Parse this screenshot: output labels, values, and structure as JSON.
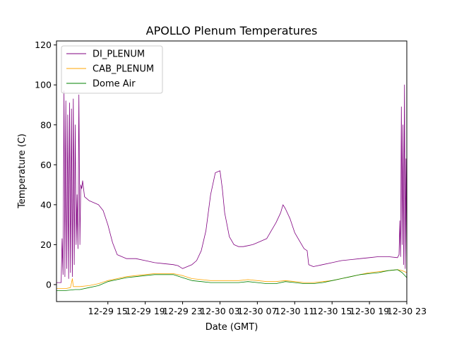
{
  "chart_data": {
    "type": "line",
    "title": "APOLLO Plenum Temperatures",
    "xlabel": "Date (GMT)",
    "ylabel": "Temperature (C)",
    "xlim": [
      "2013-12-29 09:30",
      "2013-12-30 23:00"
    ],
    "ylim": [
      -8.5,
      122
    ],
    "grid": false,
    "legend_position": "top-left",
    "x_ticks": [
      {
        "x": "2013-12-29 15:00",
        "label": "12-29 15"
      },
      {
        "x": "2013-12-29 19:00",
        "label": "12-29 19"
      },
      {
        "x": "2013-12-29 23:00",
        "label": "12-29 23"
      },
      {
        "x": "2013-12-30 03:00",
        "label": "12-30 03"
      },
      {
        "x": "2013-12-30 07:00",
        "label": "12-30 07"
      },
      {
        "x": "2013-12-30 11:00",
        "label": "12-30 11"
      },
      {
        "x": "2013-12-30 15:00",
        "label": "12-30 15"
      },
      {
        "x": "2013-12-30 19:00",
        "label": "12-30 19"
      },
      {
        "x": "2013-12-30 23:00",
        "label": "12-30 23"
      }
    ],
    "y_ticks": [
      0,
      20,
      40,
      60,
      80,
      100,
      120
    ],
    "series": [
      {
        "name": "DI_PLENUM",
        "color": "#800080",
        "x": [
          "2013-12-29 09:30",
          "2013-12-29 10:00",
          "2013-12-29 10:06",
          "2013-12-29 10:12",
          "2013-12-29 10:18",
          "2013-12-29 10:24",
          "2013-12-29 10:30",
          "2013-12-29 10:36",
          "2013-12-29 10:42",
          "2013-12-29 10:48",
          "2013-12-29 10:54",
          "2013-12-29 11:00",
          "2013-12-29 11:06",
          "2013-12-29 11:12",
          "2013-12-29 11:18",
          "2013-12-29 11:24",
          "2013-12-29 11:30",
          "2013-12-29 11:36",
          "2013-12-29 11:42",
          "2013-12-29 11:48",
          "2013-12-29 11:54",
          "2013-12-29 12:00",
          "2013-12-29 12:06",
          "2013-12-29 12:12",
          "2013-12-29 12:18",
          "2013-12-29 12:30",
          "2013-12-29 13:00",
          "2013-12-29 13:30",
          "2013-12-29 14:00",
          "2013-12-29 14:30",
          "2013-12-29 15:00",
          "2013-12-29 15:30",
          "2013-12-29 16:00",
          "2013-12-29 17:00",
          "2013-12-29 18:00",
          "2013-12-29 19:00",
          "2013-12-29 20:00",
          "2013-12-29 21:00",
          "2013-12-29 22:00",
          "2013-12-29 22:30",
          "2013-12-29 23:00",
          "2013-12-29 23:30",
          "2013-12-30 00:00",
          "2013-12-30 00:30",
          "2013-12-30 01:00",
          "2013-12-30 01:30",
          "2013-12-30 02:00",
          "2013-12-30 02:30",
          "2013-12-30 03:00",
          "2013-12-30 03:15",
          "2013-12-30 03:30",
          "2013-12-30 03:45",
          "2013-12-30 04:00",
          "2013-12-30 04:30",
          "2013-12-30 05:00",
          "2013-12-30 05:30",
          "2013-12-30 06:00",
          "2013-12-30 06:30",
          "2013-12-30 07:00",
          "2013-12-30 07:30",
          "2013-12-30 08:00",
          "2013-12-30 08:30",
          "2013-12-30 09:00",
          "2013-12-30 09:30",
          "2013-12-30 09:45",
          "2013-12-30 10:00",
          "2013-12-30 10:30",
          "2013-12-30 11:00",
          "2013-12-30 11:30",
          "2013-12-30 12:00",
          "2013-12-30 12:20",
          "2013-12-30 12:30",
          "2013-12-30 13:00",
          "2013-12-30 14:00",
          "2013-12-30 15:00",
          "2013-12-30 16:00",
          "2013-12-30 17:00",
          "2013-12-30 18:00",
          "2013-12-30 19:00",
          "2013-12-30 20:00",
          "2013-12-30 21:00",
          "2013-12-30 22:00",
          "2013-12-30 22:10",
          "2013-12-30 22:15",
          "2013-12-30 22:20",
          "2013-12-30 22:25",
          "2013-12-30 22:30",
          "2013-12-30 22:35",
          "2013-12-30 22:40",
          "2013-12-30 22:45",
          "2013-12-30 22:50",
          "2013-12-30 22:55",
          "2013-12-30 23:00"
        ],
        "values": [
          1,
          1,
          23,
          5,
          97,
          4,
          92,
          8,
          85,
          3,
          91,
          6,
          88,
          4,
          93,
          10,
          80,
          20,
          45,
          18,
          95,
          20,
          50,
          48,
          52,
          44,
          42,
          41,
          40,
          37,
          30,
          21,
          15,
          13,
          13,
          12,
          11,
          10.5,
          10,
          9.5,
          8,
          9,
          10,
          12,
          17,
          27,
          45,
          56,
          57,
          48,
          36,
          30,
          24,
          20,
          19,
          19,
          19.5,
          20,
          21,
          22,
          23,
          27,
          31,
          36,
          40,
          38,
          33,
          26,
          22,
          18,
          17,
          10,
          9,
          10,
          11,
          12,
          12.5,
          13,
          13.5,
          14,
          14,
          13.5,
          15,
          32,
          14,
          89,
          20,
          80,
          10,
          100,
          8,
          63,
          8
        ]
      },
      {
        "name": "CAB_PLENUM",
        "color": "#ffa500",
        "x": [
          "2013-12-29 09:30",
          "2013-12-29 10:30",
          "2013-12-29 11:00",
          "2013-12-29 11:12",
          "2013-12-29 11:18",
          "2013-12-29 11:30",
          "2013-12-29 12:00",
          "2013-12-29 13:00",
          "2013-12-29 14:00",
          "2013-12-29 15:00",
          "2013-12-29 16:00",
          "2013-12-29 17:00",
          "2013-12-29 18:00",
          "2013-12-29 19:00",
          "2013-12-29 20:00",
          "2013-12-29 21:00",
          "2013-12-29 22:00",
          "2013-12-29 23:00",
          "2013-12-30 00:00",
          "2013-12-30 01:00",
          "2013-12-30 02:00",
          "2013-12-30 03:00",
          "2013-12-30 04:00",
          "2013-12-30 05:00",
          "2013-12-30 06:00",
          "2013-12-30 07:00",
          "2013-12-30 08:00",
          "2013-12-30 09:00",
          "2013-12-30 10:00",
          "2013-12-30 11:00",
          "2013-12-30 12:00",
          "2013-12-30 13:00",
          "2013-12-30 14:00",
          "2013-12-30 15:00",
          "2013-12-30 16:00",
          "2013-12-30 17:00",
          "2013-12-30 18:00",
          "2013-12-30 19:00",
          "2013-12-30 20:00",
          "2013-12-30 21:00",
          "2013-12-30 22:00",
          "2013-12-30 22:30",
          "2013-12-30 23:00"
        ],
        "values": [
          -2,
          -2,
          -1.5,
          3,
          -1,
          -1,
          -1,
          -0.5,
          0.5,
          2,
          3,
          4,
          4.5,
          5,
          5.5,
          5.5,
          5.5,
          4.5,
          3,
          2.5,
          2,
          2,
          2,
          2,
          2.5,
          2,
          1.5,
          1.5,
          2,
          1.5,
          1,
          1,
          1.5,
          2,
          3,
          4,
          5,
          6,
          6.5,
          7,
          7.5,
          7,
          6
        ]
      },
      {
        "name": "Dome Air",
        "color": "#008000",
        "x": [
          "2013-12-29 09:30",
          "2013-12-29 10:30",
          "2013-12-29 11:30",
          "2013-12-29 12:00",
          "2013-12-29 13:00",
          "2013-12-29 14:00",
          "2013-12-29 15:00",
          "2013-12-29 16:00",
          "2013-12-29 17:00",
          "2013-12-29 18:00",
          "2013-12-29 19:00",
          "2013-12-29 20:00",
          "2013-12-29 21:00",
          "2013-12-29 22:00",
          "2013-12-29 23:00",
          "2013-12-30 00:00",
          "2013-12-30 01:00",
          "2013-12-30 02:00",
          "2013-12-30 03:00",
          "2013-12-30 04:00",
          "2013-12-30 05:00",
          "2013-12-30 06:00",
          "2013-12-30 07:00",
          "2013-12-30 08:00",
          "2013-12-30 09:00",
          "2013-12-30 10:00",
          "2013-12-30 11:00",
          "2013-12-30 12:00",
          "2013-12-30 13:00",
          "2013-12-30 14:00",
          "2013-12-30 15:00",
          "2013-12-30 16:00",
          "2013-12-30 17:00",
          "2013-12-30 18:00",
          "2013-12-30 19:00",
          "2013-12-30 20:00",
          "2013-12-30 21:00",
          "2013-12-30 22:00",
          "2013-12-30 22:30",
          "2013-12-30 23:00"
        ],
        "values": [
          -3,
          -3,
          -2.5,
          -2.5,
          -1.5,
          -0.5,
          1.5,
          2.5,
          3.5,
          4,
          4.5,
          5,
          5,
          5,
          3.5,
          2,
          1.5,
          1,
          1,
          1,
          1,
          1.5,
          1,
          0.5,
          0.5,
          1.5,
          1,
          0.5,
          0.5,
          1,
          2,
          3,
          4,
          5,
          5.5,
          6,
          7,
          7.5,
          6,
          3.5
        ]
      }
    ]
  }
}
